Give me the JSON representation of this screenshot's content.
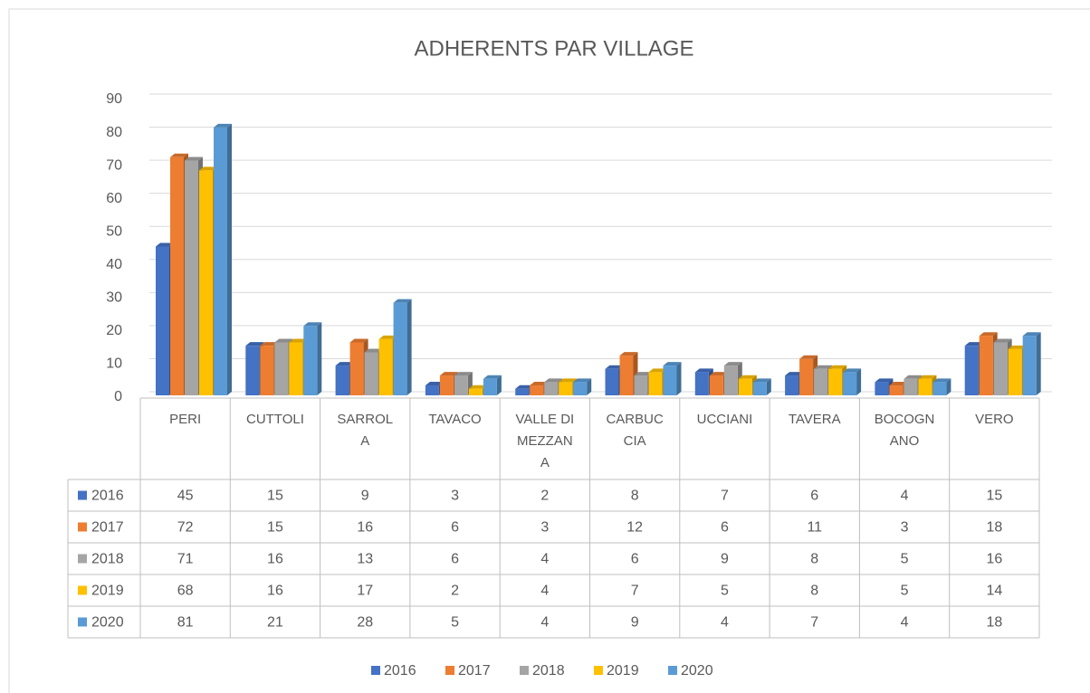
{
  "chart_data": {
    "type": "bar",
    "title": "ADHERENTS PAR VILLAGE",
    "categories": [
      "PERI",
      "CUTTOLI",
      "SARROLA",
      "TAVACO",
      "VALLE DI MEZZANA",
      "CARBUCCIA",
      "UCCIANI",
      "TAVERA",
      "BOCOGNANO",
      "VERO"
    ],
    "series": [
      {
        "name": "2016",
        "color": "#4472c4",
        "values": [
          45,
          15,
          9,
          3,
          2,
          8,
          7,
          6,
          4,
          15
        ]
      },
      {
        "name": "2017",
        "color": "#ed7d31",
        "values": [
          72,
          15,
          16,
          6,
          3,
          12,
          6,
          11,
          3,
          18
        ]
      },
      {
        "name": "2018",
        "color": "#a5a5a5",
        "values": [
          71,
          16,
          13,
          6,
          4,
          6,
          9,
          8,
          5,
          16
        ]
      },
      {
        "name": "2019",
        "color": "#ffc000",
        "values": [
          68,
          16,
          17,
          2,
          4,
          7,
          5,
          8,
          5,
          14
        ]
      },
      {
        "name": "2020",
        "color": "#5b9bd5",
        "values": [
          81,
          21,
          28,
          5,
          4,
          9,
          4,
          7,
          4,
          18
        ]
      }
    ],
    "ylim": [
      0,
      90
    ],
    "yticks": [
      0,
      10,
      20,
      30,
      40,
      50,
      60,
      70,
      80,
      90
    ],
    "grid": true,
    "legend": "bottom"
  }
}
